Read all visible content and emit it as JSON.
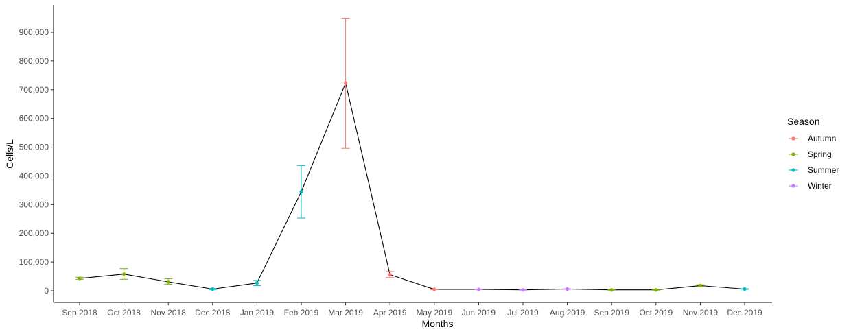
{
  "chart_data": {
    "type": "line",
    "xlabel": "Months",
    "ylabel": "Cells/L",
    "ylim": [
      0,
      1000000
    ],
    "yticks": [
      0,
      100000,
      200000,
      300000,
      400000,
      500000,
      600000,
      700000,
      800000,
      900000
    ],
    "ytick_labels": [
      "0",
      "100,000",
      "200,000",
      "300,000",
      "400,000",
      "500,000",
      "600,000",
      "700,000",
      "800,000",
      "900,000"
    ],
    "grid": false,
    "legend_position": "right",
    "legend": {
      "title": "Season",
      "entries": [
        {
          "name": "Autumn",
          "color": "#F8766D"
        },
        {
          "name": "Spring",
          "color": "#7CAE00"
        },
        {
          "name": "Summer",
          "color": "#00BFC4"
        },
        {
          "name": "Winter",
          "color": "#C77CFF"
        }
      ]
    },
    "line_color": "#000000",
    "points": [
      {
        "x": "Sep 2018",
        "y": 43000,
        "lower": 40000,
        "upper": 47000,
        "season": "Spring"
      },
      {
        "x": "Oct 2018",
        "y": 58000,
        "lower": 40000,
        "upper": 77000,
        "season": "Spring"
      },
      {
        "x": "Nov 2018",
        "y": 31000,
        "lower": 23000,
        "upper": 42000,
        "season": "Spring"
      },
      {
        "x": "Dec 2018",
        "y": 6000,
        "lower": 4000,
        "upper": 8000,
        "season": "Summer"
      },
      {
        "x": "Jan 2019",
        "y": 27000,
        "lower": 18000,
        "upper": 36000,
        "season": "Summer"
      },
      {
        "x": "Feb 2019",
        "y": 345000,
        "lower": 253000,
        "upper": 436000,
        "season": "Summer"
      },
      {
        "x": "Mar 2019",
        "y": 723000,
        "lower": 496000,
        "upper": 949000,
        "season": "Autumn"
      },
      {
        "x": "Apr 2019",
        "y": 56000,
        "lower": 46000,
        "upper": 67000,
        "season": "Autumn"
      },
      {
        "x": "May 2019",
        "y": 5000,
        "lower": 4000,
        "upper": 6000,
        "season": "Autumn"
      },
      {
        "x": "Jun 2019",
        "y": 5000,
        "lower": 4000,
        "upper": 6000,
        "season": "Winter"
      },
      {
        "x": "Jul 2019",
        "y": 3000,
        "lower": 2000,
        "upper": 4000,
        "season": "Winter"
      },
      {
        "x": "Aug 2019",
        "y": 6000,
        "lower": 5000,
        "upper": 7000,
        "season": "Winter"
      },
      {
        "x": "Sep 2019",
        "y": 3000,
        "lower": 2000,
        "upper": 4000,
        "season": "Spring"
      },
      {
        "x": "Oct 2019",
        "y": 3000,
        "lower": 2000,
        "upper": 4000,
        "season": "Spring"
      },
      {
        "x": "Nov 2019",
        "y": 18000,
        "lower": 14000,
        "upper": 21000,
        "season": "Spring"
      },
      {
        "x": "Dec 2019",
        "y": 6000,
        "lower": 5000,
        "upper": 7000,
        "season": "Summer"
      }
    ]
  }
}
